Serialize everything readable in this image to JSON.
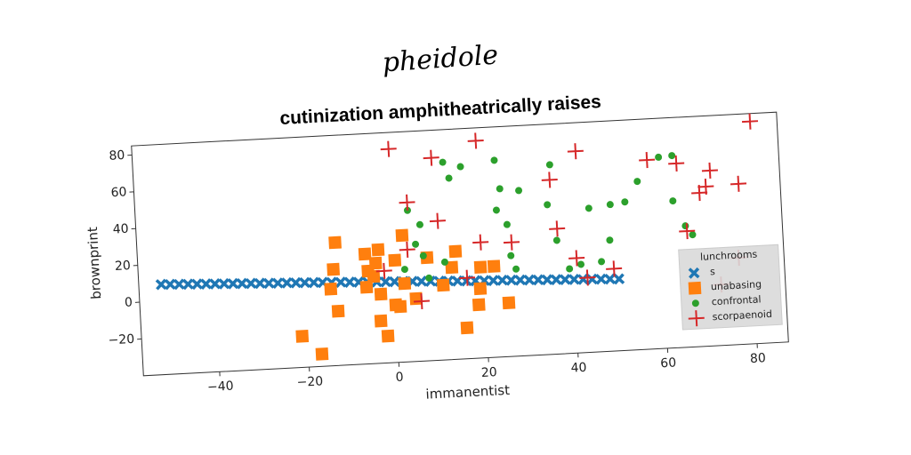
{
  "chart_data": {
    "type": "scatter",
    "suptitle": "pheidole",
    "title": "cutinization amphitheatrically raises",
    "xlabel": "immanentist",
    "ylabel": "brownprint",
    "xlim": [
      -57,
      87
    ],
    "ylim": [
      -40,
      85
    ],
    "xticks": [
      {
        "value": -40,
        "label": "−40"
      },
      {
        "value": -20,
        "label": "−20"
      },
      0,
      20,
      40,
      60,
      80
    ],
    "yticks": [
      {
        "value": -20,
        "label": "−20"
      },
      0,
      20,
      40,
      60,
      80
    ],
    "legend_title": "lunchrooms",
    "legend": "lower right",
    "series": [
      {
        "name": "s",
        "color": "#1f77b4",
        "marker": "x",
        "x": [
          -52,
          -50,
          -48,
          -46,
          -44,
          -42,
          -40,
          -38,
          -36,
          -34,
          -32,
          -30,
          -28,
          -26,
          -24,
          -22,
          -20,
          -18,
          -16,
          -14,
          -12,
          -10,
          -8,
          -6,
          -4,
          -2,
          0,
          2,
          4,
          6,
          8,
          10,
          12,
          14,
          16,
          18,
          20,
          22,
          24,
          26,
          28,
          30,
          32,
          34,
          36,
          38,
          40,
          42,
          44,
          46,
          48,
          50
        ],
        "values": [
          9.0,
          8.8,
          8.6,
          8.4,
          8.2,
          8.0,
          7.8,
          7.6,
          7.4,
          7.2,
          7.0,
          6.8,
          6.6,
          6.4,
          6.3,
          6.1,
          5.9,
          5.7,
          5.5,
          5.3,
          5.1,
          4.9,
          4.7,
          4.5,
          4.3,
          4.1,
          3.9,
          3.7,
          3.5,
          3.3,
          3.1,
          2.9,
          2.7,
          2.5,
          2.3,
          2.1,
          1.9,
          1.7,
          1.6,
          1.4,
          1.2,
          1.0,
          0.8,
          0.6,
          0.4,
          0.2,
          0.0,
          -0.2,
          -0.4,
          -0.6,
          -0.8,
          -1.0
        ]
      },
      {
        "name": "unabasing",
        "color": "#ff7f0e",
        "marker": "s",
        "x": [
          -12.8,
          -13.5,
          -14.3,
          -12.9,
          -21.2,
          -17,
          -6.3,
          -5.8,
          -6.3,
          -3.3,
          -4,
          -4.6,
          -3.2,
          -3.5,
          -2.1,
          0,
          1,
          2.2,
          0.3,
          2.2,
          7.5,
          4.6,
          10.8,
          13.9,
          12.9,
          15.6,
          19.3,
          19,
          18.5,
          22.3,
          25.2
        ],
        "values": [
          26.8,
          12.3,
          1.7,
          -10.5,
          -23.1,
          -33.3,
          19.7,
          10.4,
          1.7,
          21.7,
          14.5,
          7.3,
          -2.5,
          -17,
          -25.4,
          -8.7,
          -9.8,
          28.8,
          15.5,
          2.6,
          16,
          -5.9,
          0.6,
          18.6,
          10,
          -23.2,
          9.3,
          -2.3,
          -11,
          9.4,
          -10.8
        ]
      },
      {
        "name": "confrontal",
        "color": "#2ca02c",
        "marker": "o",
        "x": [
          3.7,
          5.1,
          6.3,
          2.4,
          6.7,
          7.7,
          12.1,
          13.3,
          16,
          11.4,
          23.6,
          24.5,
          23.5,
          25.7,
          26.2,
          27.2,
          28.7,
          35.9,
          34.9,
          36.6,
          39.1,
          41.7,
          44.1,
          46.3,
          48.4,
          48.9,
          52.2,
          55.2,
          60.2,
          63.2,
          62.9,
          65.4,
          66.9
        ],
        "values": [
          42.2,
          23.6,
          34.1,
          10.3,
          17.1,
          4.9,
          67.3,
          58.5,
          64.4,
          13.1,
          66.9,
          51.3,
          39.8,
          31.7,
          14.7,
          7.3,
          49.8,
          62.9,
          41.3,
          21.7,
          5.9,
          8,
          38.2,
          8.9,
          20.3,
          39.6,
          40.6,
          51.4,
          63.9,
          64.4,
          39.8,
          25.9,
          20.9
        ]
      },
      {
        "name": "scorpaenoid",
        "color": "#d62728",
        "marker": "+",
        "x": [
          0.2,
          19.7,
          9.6,
          3.7,
          3.2,
          10.3,
          -2.2,
          5.8,
          19.6,
          26.5,
          16.2,
          35.7,
          36.8,
          41.8,
          40.8,
          43,
          49,
          57.6,
          64.1,
          65.7,
          68.9,
          71.5,
          70.4,
          77.7,
          81,
          76.9,
          72.7
        ],
        "values": [
          76,
          78,
          70,
          46.5,
          20.9,
          35.6,
          10,
          -7.5,
          22.8,
          21.9,
          3.9,
          54.7,
          28,
          69.5,
          11.5,
          0.6,
          4.7,
          62.7,
          60,
          23,
          43.4,
          55.2,
          46.6,
          47.2,
          80.7,
          7.1,
          -6.9
        ]
      }
    ]
  }
}
